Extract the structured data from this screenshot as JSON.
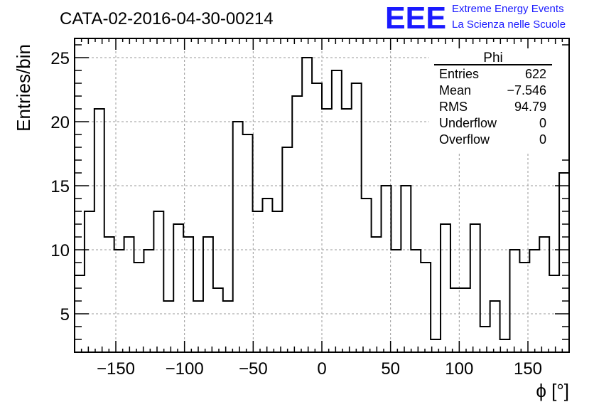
{
  "title": "CATA-02-2016-04-30-00214",
  "logo": {
    "text": "EEE",
    "line1": "Extreme Energy Events",
    "line2": "La Scienza nelle Scuole",
    "color": "#1a1aff"
  },
  "stats": {
    "title": "Phi",
    "rows": [
      {
        "label": "Entries",
        "value": "622"
      },
      {
        "label": "Mean",
        "value": "−7.546"
      },
      {
        "label": "RMS",
        "value": "94.79"
      },
      {
        "label": "Underflow",
        "value": "0"
      },
      {
        "label": "Overflow",
        "value": "0"
      }
    ]
  },
  "chart_data": {
    "type": "bar",
    "histogram": true,
    "xlabel": "ϕ [°]",
    "ylabel": "Entries/bin",
    "xlim": [
      -180,
      180
    ],
    "ylim": [
      2,
      26.5
    ],
    "bin_width": 7.2,
    "xticks": [
      -150,
      -100,
      -50,
      0,
      50,
      100,
      150
    ],
    "xtick_labels": [
      "−150",
      "−100",
      "−50",
      "0",
      "50",
      "100",
      "150"
    ],
    "yticks": [
      5,
      10,
      15,
      20,
      25
    ],
    "ytick_labels": [
      "5",
      "10",
      "15",
      "20",
      "25"
    ],
    "grid": true,
    "values": [
      8,
      13,
      21,
      11,
      10,
      11,
      9,
      10,
      13,
      6,
      12,
      11,
      6,
      11,
      7,
      6,
      20,
      19,
      13,
      14,
      13,
      18,
      22,
      25,
      23,
      21,
      24,
      21,
      23,
      14,
      11,
      15,
      10,
      15,
      10,
      9,
      3,
      12,
      7,
      7,
      12,
      4,
      6,
      3,
      10,
      9,
      10,
      11,
      8,
      16
    ]
  }
}
